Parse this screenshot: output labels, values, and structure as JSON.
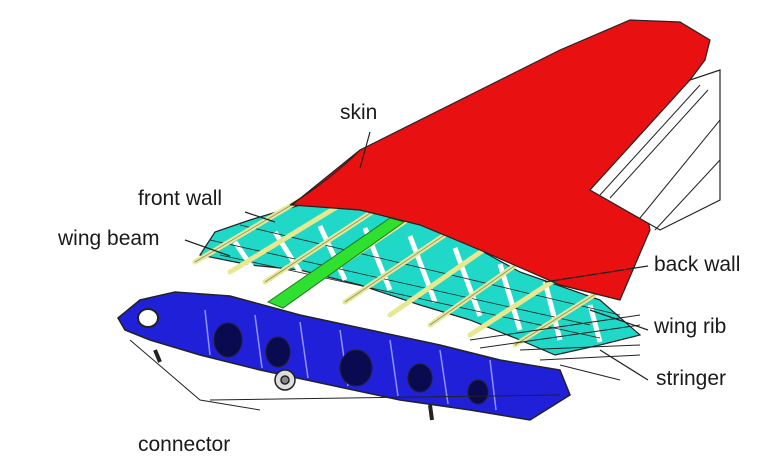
{
  "labels": {
    "skin": "skin",
    "front_wall": "front wall",
    "wing_beam": "wing beam",
    "back_wall": "back wall",
    "wing_rib": "wing rib",
    "stringer": "stringer",
    "connector": "connector"
  },
  "colors": {
    "skin": "#e81010",
    "front_spar": "#2020d8",
    "ribs": "#20d8c8",
    "wing_beam": "#30e030",
    "stringers": "#e8e890",
    "outline": "#222222"
  }
}
